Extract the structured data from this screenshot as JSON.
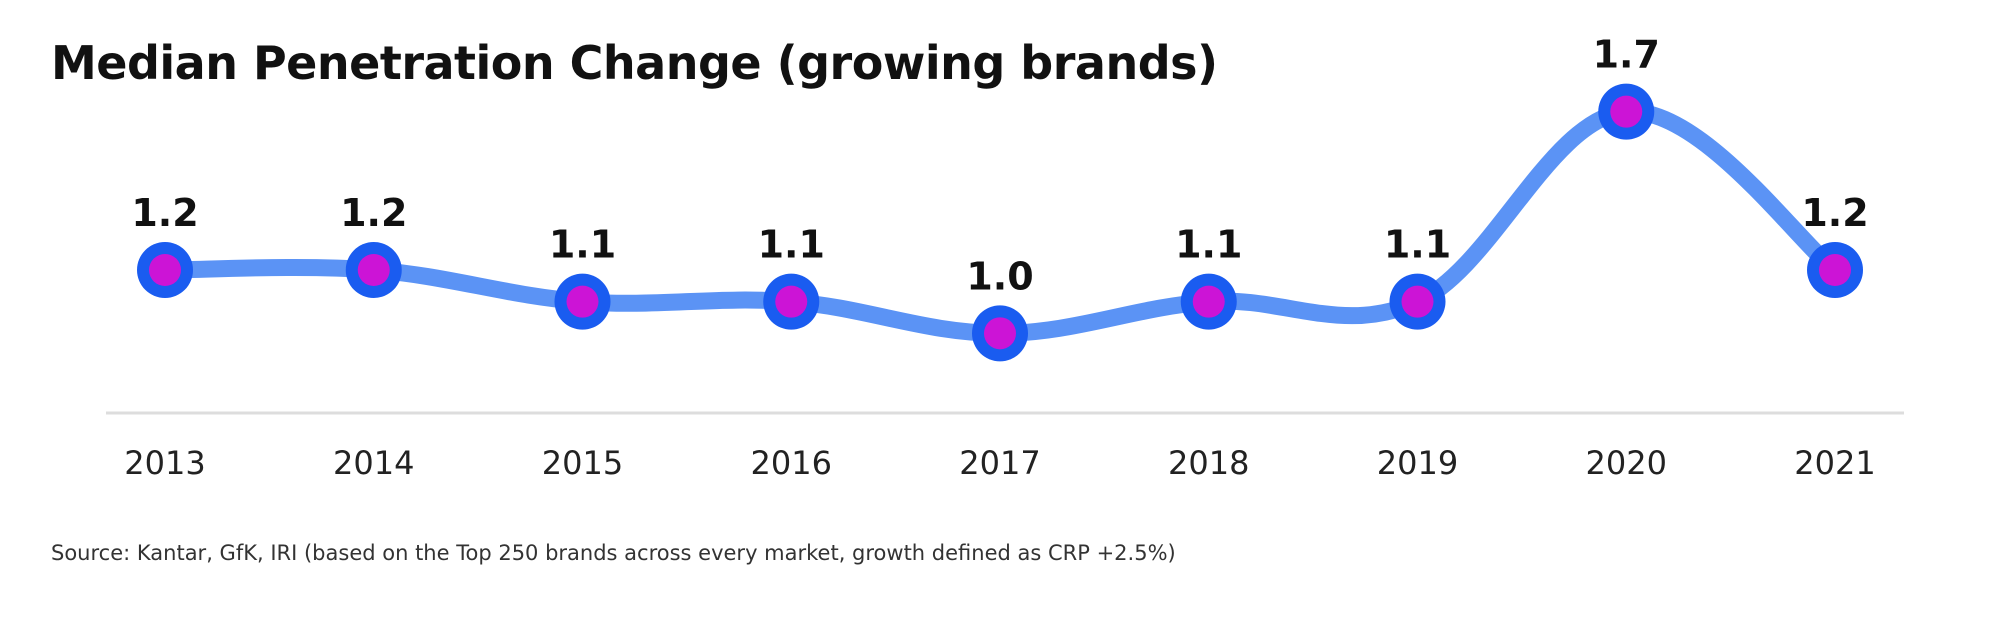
{
  "title": "Median Penetration Change (growing brands)",
  "source": "Source: Kantar, GfK, IRI (based on the Top 250 brands across every market, growth defined as CRP +2.5%)",
  "colors": {
    "line": "#5b93f5",
    "marker_ring": "#1a5cf0",
    "marker_fill": "#cc14d6",
    "baseline": "#dddddd"
  },
  "chart_data": {
    "type": "line",
    "title": "Median Penetration Change (growing brands)",
    "xlabel": "",
    "ylabel": "",
    "grid": false,
    "legend": "none",
    "categories": [
      "2013",
      "2014",
      "2015",
      "2016",
      "2017",
      "2018",
      "2019",
      "2020",
      "2021"
    ],
    "values": [
      1.2,
      1.2,
      1.1,
      1.1,
      1.0,
      1.1,
      1.1,
      1.7,
      1.2
    ],
    "data_labels": [
      "1.2",
      "1.2",
      "1.1",
      "1.1",
      "1.0",
      "1.1",
      "1.1",
      "1.7",
      "1.2"
    ],
    "ylim": [
      0.6,
      1.8
    ]
  }
}
